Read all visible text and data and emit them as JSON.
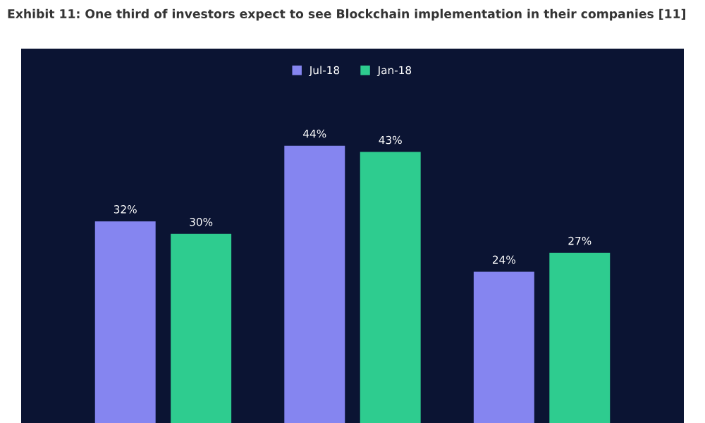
{
  "chart_data": {
    "type": "bar",
    "title": "Exhibit 11: One third of investors expect to see Blockchain implementation in their companies [11]",
    "categories": [
      null,
      null,
      null
    ],
    "series": [
      {
        "name": "Jul-18",
        "color": "#8585f0",
        "values": [
          32,
          44,
          24
        ],
        "value_labels": [
          "32%",
          "44%",
          "24%"
        ]
      },
      {
        "name": "Jan-18",
        "color": "#2ecc8f",
        "values": [
          30,
          43,
          27
        ],
        "value_labels": [
          "30%",
          "43%",
          "27%"
        ]
      }
    ],
    "legend": "top",
    "grid": false
  }
}
